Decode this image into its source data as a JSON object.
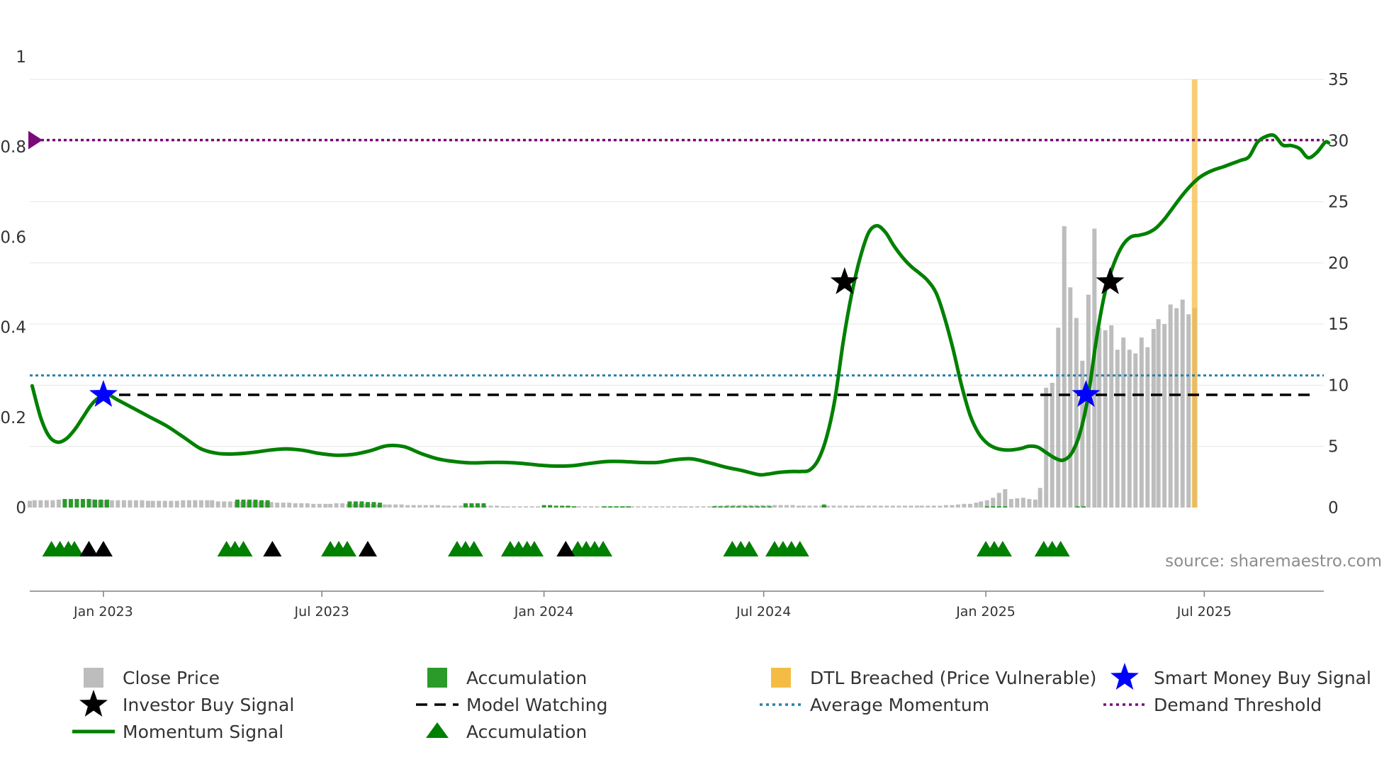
{
  "colors": {
    "close_price": "#bdbdbd",
    "accumulation": "#2a9a2a",
    "accumulation_triangle": "#008000",
    "momentum": "#008000",
    "dtl": "#f5bc45",
    "smart_money": "#0000ff",
    "investor": "#000000",
    "model_watching": "#000000",
    "average_momentum": "#2d7fa6",
    "demand_threshold": "#7a0a7a",
    "grid": "#e6e6e6",
    "axis": "#808080",
    "source": "#8c8c8c"
  },
  "source": {
    "text": "source: sharemaestro.com"
  },
  "chart_data": {
    "type": "line",
    "title": "",
    "x_range": [
      "2022-11-01",
      "2025-10-08"
    ],
    "y_left": {
      "range": [
        0,
        1
      ],
      "ticks": [
        0,
        0.2,
        0.4,
        0.6,
        0.8,
        1
      ],
      "tick_labels": [
        "0",
        "0.2",
        "0.4",
        "0.6",
        "0.8",
        "1"
      ]
    },
    "y_right": {
      "range": [
        0,
        38
      ],
      "ticks": [
        0,
        5,
        10,
        15,
        20,
        25,
        30,
        35
      ],
      "tick_labels": [
        "0",
        "5",
        "10",
        "15",
        "20",
        "25",
        "30",
        "35"
      ]
    },
    "x_ticks": [
      {
        "date": "2023-01-01",
        "label": "Jan 2023"
      },
      {
        "date": "2023-07-01",
        "label": "Jul 2023"
      },
      {
        "date": "2024-01-01",
        "label": "Jan 2024"
      },
      {
        "date": "2024-07-01",
        "label": "Jul 2024"
      },
      {
        "date": "2025-01-01",
        "label": "Jan 2025"
      },
      {
        "date": "2025-07-01",
        "label": "Jul 2025"
      }
    ],
    "reference_lines": {
      "model_watching": 0.25,
      "average_momentum": 0.293,
      "demand_threshold": 0.815
    },
    "momentum_signal": [
      [
        "2022-11-03",
        0.27
      ],
      [
        "2022-11-10",
        0.2
      ],
      [
        "2022-11-17",
        0.158
      ],
      [
        "2022-11-24",
        0.145
      ],
      [
        "2022-12-01",
        0.152
      ],
      [
        "2022-12-08",
        0.172
      ],
      [
        "2022-12-15",
        0.2
      ],
      [
        "2022-12-22",
        0.228
      ],
      [
        "2022-12-29",
        0.245
      ],
      [
        "2023-01-05",
        0.25
      ],
      [
        "2023-01-12",
        0.24
      ],
      [
        "2023-01-26",
        0.22
      ],
      [
        "2023-02-09",
        0.2
      ],
      [
        "2023-02-23",
        0.18
      ],
      [
        "2023-03-09",
        0.155
      ],
      [
        "2023-03-23",
        0.13
      ],
      [
        "2023-04-06",
        0.12
      ],
      [
        "2023-04-20",
        0.119
      ],
      [
        "2023-05-04",
        0.122
      ],
      [
        "2023-05-18",
        0.127
      ],
      [
        "2023-06-01",
        0.13
      ],
      [
        "2023-06-15",
        0.127
      ],
      [
        "2023-06-29",
        0.12
      ],
      [
        "2023-07-13",
        0.116
      ],
      [
        "2023-07-27",
        0.118
      ],
      [
        "2023-08-10",
        0.126
      ],
      [
        "2023-08-24",
        0.137
      ],
      [
        "2023-09-07",
        0.135
      ],
      [
        "2023-09-21",
        0.12
      ],
      [
        "2023-10-05",
        0.108
      ],
      [
        "2023-10-19",
        0.102
      ],
      [
        "2023-11-02",
        0.099
      ],
      [
        "2023-11-16",
        0.1
      ],
      [
        "2023-11-30",
        0.1
      ],
      [
        "2023-12-14",
        0.098
      ],
      [
        "2023-12-28",
        0.094
      ],
      [
        "2024-01-11",
        0.092
      ],
      [
        "2024-01-25",
        0.093
      ],
      [
        "2024-02-08",
        0.098
      ],
      [
        "2024-02-22",
        0.102
      ],
      [
        "2024-03-07",
        0.102
      ],
      [
        "2024-03-21",
        0.1
      ],
      [
        "2024-04-04",
        0.1
      ],
      [
        "2024-04-18",
        0.106
      ],
      [
        "2024-05-02",
        0.108
      ],
      [
        "2024-05-16",
        0.1
      ],
      [
        "2024-05-30",
        0.09
      ],
      [
        "2024-06-13",
        0.082
      ],
      [
        "2024-06-27",
        0.073
      ],
      [
        "2024-07-04",
        0.074
      ],
      [
        "2024-07-11",
        0.077
      ],
      [
        "2024-07-18",
        0.079
      ],
      [
        "2024-07-25",
        0.08
      ],
      [
        "2024-08-01",
        0.08
      ],
      [
        "2024-08-08",
        0.083
      ],
      [
        "2024-08-15",
        0.105
      ],
      [
        "2024-08-22",
        0.155
      ],
      [
        "2024-08-29",
        0.24
      ],
      [
        "2024-09-05",
        0.37
      ],
      [
        "2024-09-12",
        0.475
      ],
      [
        "2024-09-19",
        0.555
      ],
      [
        "2024-09-26",
        0.61
      ],
      [
        "2024-10-03",
        0.625
      ],
      [
        "2024-10-10",
        0.61
      ],
      [
        "2024-10-17",
        0.58
      ],
      [
        "2024-10-24",
        0.555
      ],
      [
        "2024-10-31",
        0.535
      ],
      [
        "2024-11-07",
        0.52
      ],
      [
        "2024-11-14",
        0.503
      ],
      [
        "2024-11-21",
        0.475
      ],
      [
        "2024-11-28",
        0.42
      ],
      [
        "2024-12-05",
        0.35
      ],
      [
        "2024-12-12",
        0.27
      ],
      [
        "2024-12-19",
        0.205
      ],
      [
        "2024-12-26",
        0.165
      ],
      [
        "2025-01-02",
        0.143
      ],
      [
        "2025-01-09",
        0.132
      ],
      [
        "2025-01-16",
        0.128
      ],
      [
        "2025-01-23",
        0.128
      ],
      [
        "2025-01-30",
        0.131
      ],
      [
        "2025-02-06",
        0.136
      ],
      [
        "2025-02-13",
        0.134
      ],
      [
        "2025-02-20",
        0.122
      ],
      [
        "2025-02-27",
        0.11
      ],
      [
        "2025-03-06",
        0.105
      ],
      [
        "2025-03-13",
        0.12
      ],
      [
        "2025-03-20",
        0.165
      ],
      [
        "2025-03-27",
        0.25
      ],
      [
        "2025-04-03",
        0.38
      ],
      [
        "2025-04-10",
        0.48
      ],
      [
        "2025-04-17",
        0.54
      ],
      [
        "2025-04-24",
        0.58
      ],
      [
        "2025-05-01",
        0.6
      ],
      [
        "2025-05-08",
        0.604
      ],
      [
        "2025-05-15",
        0.609
      ],
      [
        "2025-05-22",
        0.62
      ],
      [
        "2025-05-29",
        0.64
      ],
      [
        "2025-06-05",
        0.665
      ],
      [
        "2025-06-12",
        0.69
      ],
      [
        "2025-06-19",
        0.712
      ],
      [
        "2025-06-26",
        0.73
      ],
      [
        "2025-07-03",
        0.742
      ],
      [
        "2025-07-10",
        0.75
      ],
      [
        "2025-07-17",
        0.756
      ],
      [
        "2025-07-24",
        0.763
      ],
      [
        "2025-07-31",
        0.77
      ],
      [
        "2025-08-07",
        0.778
      ],
      [
        "2025-08-14",
        0.81
      ],
      [
        "2025-08-21",
        0.823
      ],
      [
        "2025-08-28",
        0.825
      ],
      [
        "2025-09-04",
        0.804
      ],
      [
        "2025-09-11",
        0.803
      ],
      [
        "2025-09-18",
        0.796
      ],
      [
        "2025-09-25",
        0.776
      ],
      [
        "2025-10-02",
        0.787
      ],
      [
        "2025-10-09",
        0.81
      ],
      [
        "2025-10-12",
        0.809
      ]
    ],
    "close_price": {
      "start": "2022-11-01",
      "step_days": 4.9,
      "values": [
        0.55,
        0.6,
        0.6,
        0.6,
        0.6,
        0.65,
        0.65,
        0.65,
        0.65,
        0.65,
        0.65,
        0.65,
        0.6,
        0.6,
        0.6,
        0.6,
        0.6,
        0.6,
        0.6,
        0.6,
        0.55,
        0.55,
        0.55,
        0.55,
        0.55,
        0.55,
        0.6,
        0.6,
        0.6,
        0.6,
        0.6,
        0.6,
        0.5,
        0.5,
        0.5,
        0.5,
        0.5,
        0.5,
        0.5,
        0.5,
        0.45,
        0.45,
        0.4,
        0.4,
        0.4,
        0.35,
        0.35,
        0.35,
        0.3,
        0.3,
        0.3,
        0.3,
        0.35,
        0.35,
        0.3,
        0.3,
        0.3,
        0.3,
        0.3,
        0.25,
        0.25,
        0.25,
        0.25,
        0.25,
        0.2,
        0.2,
        0.2,
        0.2,
        0.2,
        0.2,
        0.15,
        0.15,
        0.15,
        0.15,
        0.15,
        0.15,
        0.15,
        0.15,
        0.15,
        0.15,
        0.1,
        0.1,
        0.1,
        0.1,
        0.1,
        0.1,
        0.1,
        0.1,
        0.1,
        0.1,
        0.1,
        0.1,
        0.1,
        0.1,
        0.1,
        0.1,
        0.1,
        0.1,
        0.1,
        0.1,
        0.1,
        0.1,
        0.1,
        0.1,
        0.1,
        0.1,
        0.1,
        0.1,
        0.1,
        0.1,
        0.1,
        0.1,
        0.1,
        0.1,
        0.1,
        0.1,
        0.15,
        0.15,
        0.2,
        0.2,
        0.2,
        0.2,
        0.2,
        0.2,
        0.2,
        0.2,
        0.2,
        0.2,
        0.2,
        0.2,
        0.15,
        0.15,
        0.15,
        0.15,
        0.15,
        0.15,
        0.15,
        0.15,
        0.15,
        0.15,
        0.15,
        0.15,
        0.15,
        0.15,
        0.15,
        0.15,
        0.15,
        0.15,
        0.15,
        0.15,
        0.15,
        0.15,
        0.15,
        0.15,
        0.15,
        0.2,
        0.2,
        0.25,
        0.3,
        0.3,
        0.4,
        0.5,
        0.6,
        0.8,
        1.2,
        1.5,
        0.7,
        0.75,
        0.8,
        0.7,
        0.65,
        1.6,
        9.8,
        10.2,
        14.7,
        23.0,
        18.0,
        15.5,
        12.0,
        17.4,
        22.8,
        14.7,
        14.5,
        14.9,
        12.9,
        13.9,
        12.9,
        12.6,
        13.9,
        13.1,
        14.6,
        15.4,
        15.0,
        16.6,
        16.3,
        17.0,
        15.8,
        16.3
      ]
    },
    "accumulation_bars": [
      [
        "2022-11-30",
        0.7
      ],
      [
        "2022-12-05",
        0.7
      ],
      [
        "2022-12-10",
        0.7
      ],
      [
        "2022-12-15",
        0.7
      ],
      [
        "2022-12-20",
        0.7
      ],
      [
        "2022-12-25",
        0.65
      ],
      [
        "2022-12-30",
        0.65
      ],
      [
        "2023-01-04",
        0.65
      ],
      [
        "2023-04-22",
        0.65
      ],
      [
        "2023-04-27",
        0.65
      ],
      [
        "2023-05-02",
        0.65
      ],
      [
        "2023-05-07",
        0.65
      ],
      [
        "2023-05-12",
        0.6
      ],
      [
        "2023-05-17",
        0.6
      ],
      [
        "2023-07-24",
        0.5
      ],
      [
        "2023-07-29",
        0.5
      ],
      [
        "2023-08-03",
        0.5
      ],
      [
        "2023-08-08",
        0.45
      ],
      [
        "2023-08-13",
        0.45
      ],
      [
        "2023-08-18",
        0.4
      ],
      [
        "2023-10-28",
        0.35
      ],
      [
        "2023-11-02",
        0.35
      ],
      [
        "2023-11-07",
        0.35
      ],
      [
        "2023-11-12",
        0.35
      ],
      [
        "2024-01-01",
        0.2
      ],
      [
        "2024-01-06",
        0.2
      ],
      [
        "2024-01-11",
        0.15
      ],
      [
        "2024-01-16",
        0.15
      ],
      [
        "2024-01-21",
        0.15
      ],
      [
        "2024-01-26",
        0.1
      ],
      [
        "2024-02-20",
        0.1
      ],
      [
        "2024-02-25",
        0.1
      ],
      [
        "2024-03-01",
        0.1
      ],
      [
        "2024-03-06",
        0.1
      ],
      [
        "2024-03-11",
        0.1
      ],
      [
        "2024-05-21",
        0.1
      ],
      [
        "2024-05-26",
        0.1
      ],
      [
        "2024-05-31",
        0.1
      ],
      [
        "2024-06-05",
        0.1
      ],
      [
        "2024-06-10",
        0.1
      ],
      [
        "2024-06-16",
        0.1
      ],
      [
        "2024-06-21",
        0.1
      ],
      [
        "2024-06-26",
        0.1
      ],
      [
        "2024-07-01",
        0.1
      ],
      [
        "2024-07-06",
        0.1
      ],
      [
        "2024-08-20",
        0.25
      ],
      [
        "2025-01-02",
        0.1
      ],
      [
        "2025-01-07",
        0.1
      ],
      [
        "2025-01-12",
        0.1
      ],
      [
        "2025-01-17",
        0.1
      ],
      [
        "2025-03-18",
        0.1
      ],
      [
        "2025-03-23",
        0.1
      ]
    ],
    "dtl_breached": [
      "2025-06-23"
    ],
    "accumulation_triangles": [
      "2022-11-19",
      "2022-11-26",
      "2022-12-03",
      "2022-12-08",
      "2023-04-13",
      "2023-04-20",
      "2023-04-27",
      "2023-07-08",
      "2023-07-15",
      "2023-07-22",
      "2023-10-21",
      "2023-10-28",
      "2023-11-04",
      "2023-12-04",
      "2023-12-11",
      "2023-12-18",
      "2023-12-24",
      "2024-01-29",
      "2024-02-05",
      "2024-02-12",
      "2024-02-19",
      "2024-06-05",
      "2024-06-12",
      "2024-06-19",
      "2024-07-10",
      "2024-07-17",
      "2024-07-24",
      "2024-07-31",
      "2025-01-01",
      "2025-01-08",
      "2025-01-15",
      "2025-02-18",
      "2025-02-25",
      "2025-03-04"
    ],
    "investor_buy_triangles": [
      "2022-12-20",
      "2023-01-01",
      "2023-05-21",
      "2023-08-08",
      "2024-01-19"
    ],
    "investor_buy_stars": [
      [
        "2024-09-06",
        0.5
      ],
      [
        "2025-04-14",
        0.5
      ]
    ],
    "smart_money_stars": [
      [
        "2023-01-01",
        0.25
      ],
      [
        "2025-03-25",
        0.25
      ]
    ],
    "legend": [
      {
        "key": "close_price",
        "label": "Close Price",
        "marker": "square"
      },
      {
        "key": "accumulation",
        "label": "Accumulation",
        "marker": "square"
      },
      {
        "key": "dtl",
        "label": "DTL Breached (Price Vulnerable)",
        "marker": "square"
      },
      {
        "key": "smart_money",
        "label": "Smart Money Buy Signal",
        "marker": "star"
      },
      {
        "key": "investor",
        "label": "Investor Buy Signal",
        "marker": "star"
      },
      {
        "key": "model_watching",
        "label": "Model Watching",
        "marker": "dash"
      },
      {
        "key": "average_momentum",
        "label": "Average Momentum",
        "marker": "dot"
      },
      {
        "key": "demand_threshold",
        "label": "Demand Threshold",
        "marker": "dot"
      },
      {
        "key": "momentum",
        "label": "Momentum Signal",
        "marker": "line"
      },
      {
        "key": "accumulation_triangle",
        "label": "Accumulation",
        "marker": "triangle"
      }
    ]
  }
}
